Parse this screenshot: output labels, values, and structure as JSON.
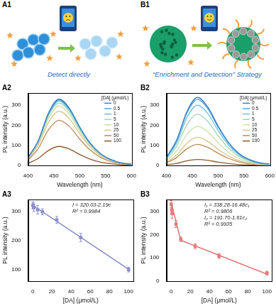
{
  "panels": [
    {
      "label": "A1",
      "caption": "Detect directly"
    },
    {
      "label": "B1",
      "caption": "“Enrichment and Detection” Strategy"
    }
  ],
  "chart_data": [
    {
      "title": "A2",
      "type": "line",
      "x_label": "Wavelength (nm)",
      "y_label": "PL intensity (a.u.)",
      "x": [
        400,
        420,
        440,
        460,
        480,
        500,
        520,
        540,
        560,
        580,
        600
      ],
      "xlim": [
        400,
        600
      ],
      "xticks": [
        400,
        450,
        500,
        550,
        600
      ],
      "ylim": [
        0,
        360
      ],
      "yticks": [
        0,
        100,
        200,
        300
      ],
      "grid": false,
      "legend": "upper right",
      "legend_title": "[DA] (μmol/L)",
      "series": [
        {
          "name": "0",
          "color": "#3b7fc4",
          "values": [
            40,
            125,
            264,
            330,
            284,
            191,
            112,
            59,
            30,
            13,
            7
          ]
        },
        {
          "name": "0.5",
          "color": "#4fa3d9",
          "values": [
            39,
            124,
            260,
            325,
            280,
            189,
            111,
            59,
            29,
            13,
            7
          ]
        },
        {
          "name": "1",
          "color": "#6cc0d8",
          "values": [
            38,
            122,
            256,
            320,
            275,
            186,
            109,
            58,
            29,
            13,
            6
          ]
        },
        {
          "name": "5",
          "color": "#9fd6b8",
          "values": [
            37,
            118,
            248,
            310,
            267,
            180,
            105,
            56,
            28,
            12,
            6
          ]
        },
        {
          "name": "10",
          "color": "#cde0a0",
          "values": [
            35,
            112,
            236,
            295,
            254,
            171,
            100,
            53,
            27,
            12,
            6
          ]
        },
        {
          "name": "25",
          "color": "#d8c48a",
          "values": [
            32,
            103,
            216,
            270,
            232,
            157,
            92,
            49,
            24,
            11,
            5
          ]
        },
        {
          "name": "50",
          "color": "#b98a55",
          "values": [
            27,
            86,
            180,
            225,
            194,
            131,
            77,
            41,
            20,
            9,
            5
          ]
        },
        {
          "name": "100",
          "color": "#8b5a2b",
          "values": [
            11,
            36,
            76,
            95,
            82,
            55,
            32,
            17,
            9,
            4,
            2
          ]
        }
      ]
    },
    {
      "title": "A3",
      "type": "scatter",
      "x_label": "[DA] (μmol/L)",
      "y_label": "PL intensity (a.u.)",
      "xlim": [
        -5,
        105
      ],
      "xticks": [
        0,
        20,
        40,
        60,
        80,
        100
      ],
      "ylim": [
        60,
        340
      ],
      "yticks": [
        100,
        200,
        300
      ],
      "grid": false,
      "annotations": [
        "I = 320.03-2.19c",
        "R² = 0.9984"
      ],
      "series": [
        {
          "type": "scatter",
          "marker": "square",
          "color": "#8d90c9",
          "x": [
            0,
            0.5,
            1,
            5,
            10,
            25,
            50,
            100
          ],
          "values": [
            320,
            318,
            312,
            305,
            298,
            270,
            210,
            100
          ],
          "errors": [
            12,
            10,
            12,
            14,
            10,
            12,
            14,
            8
          ]
        },
        {
          "type": "line",
          "marker": "none",
          "color": "#6f73bd",
          "x": [
            0,
            100
          ],
          "values": [
            320.03,
            101.03
          ]
        }
      ]
    },
    {
      "title": "B2",
      "type": "line",
      "x_label": "Wavelength (nm)",
      "y_label": "PL intensity (a.u.)",
      "x": [
        400,
        420,
        440,
        460,
        480,
        500,
        520,
        540,
        560,
        580,
        600
      ],
      "xlim": [
        400,
        600
      ],
      "xticks": [
        400,
        450,
        500,
        550,
        600
      ],
      "ylim": [
        0,
        360
      ],
      "yticks": [
        0,
        100,
        200,
        300
      ],
      "grid": false,
      "legend": "upper right",
      "legend_title": "[DA] (μmol/L)",
      "series": [
        {
          "name": "0",
          "color": "#3b7fc4",
          "values": [
            41,
            128,
            270,
            338,
            291,
            196,
            115,
            61,
            30,
            14,
            7
          ]
        },
        {
          "name": "0.5",
          "color": "#4fa3d9",
          "values": [
            39,
            125,
            262,
            328,
            282,
            190,
            112,
            59,
            30,
            13,
            7
          ]
        },
        {
          "name": "1",
          "color": "#6cc0d8",
          "values": [
            36,
            114,
            240,
            300,
            258,
            174,
            102,
            54,
            27,
            12,
            6
          ]
        },
        {
          "name": "5",
          "color": "#9fd6b8",
          "values": [
            31,
            97,
            204,
            255,
            219,
            148,
            87,
            46,
            23,
            10,
            5
          ]
        },
        {
          "name": "10",
          "color": "#cde0a0",
          "values": [
            23,
            74,
            156,
            195,
            168,
            113,
            66,
            35,
            18,
            8,
            4
          ]
        },
        {
          "name": "25",
          "color": "#d8c48a",
          "values": [
            17,
            53,
            112,
            140,
            120,
            81,
            48,
            25,
            13,
            6,
            3
          ]
        },
        {
          "name": "50",
          "color": "#b98a55",
          "values": [
            13,
            40,
            84,
            105,
            90,
            61,
            36,
            19,
            9,
            4,
            2
          ]
        },
        {
          "name": "100",
          "color": "#8b5a2b",
          "values": [
            4,
            11,
            24,
            30,
            26,
            17,
            10,
            5,
            3,
            1,
            1
          ]
        }
      ]
    },
    {
      "title": "B3",
      "type": "scatter",
      "x_label": "[DA] (μmol/L)",
      "y_label": "PL intensity (a.u.)",
      "xlim": [
        -5,
        105
      ],
      "xticks": [
        0,
        20,
        40,
        60,
        80,
        100
      ],
      "ylim": [
        0,
        350
      ],
      "yticks": [
        0,
        100,
        200,
        300
      ],
      "grid": false,
      "annotations": [
        "I₁ = 338.28-16.48c₁",
        "R² = 0.9806",
        "I₂ = 191.70-1.61c₂",
        "R² = 0.9935"
      ],
      "series": [
        {
          "type": "scatter",
          "marker": "square",
          "color": "#e8787a",
          "x": [
            0,
            0.5,
            1,
            5,
            10,
            25,
            50,
            100
          ],
          "values": [
            330,
            305,
            290,
            245,
            180,
            150,
            108,
            35
          ],
          "errors": [
            15,
            18,
            20,
            15,
            10,
            10,
            10,
            8
          ]
        },
        {
          "type": "line",
          "marker": "none",
          "color": "#e06063",
          "x": [
            0,
            10
          ],
          "values": [
            338.28,
            173.48
          ]
        },
        {
          "type": "line",
          "marker": "none",
          "color": "#e06063",
          "x": [
            10,
            100
          ],
          "values": [
            175.6,
            30.7
          ]
        }
      ]
    }
  ]
}
